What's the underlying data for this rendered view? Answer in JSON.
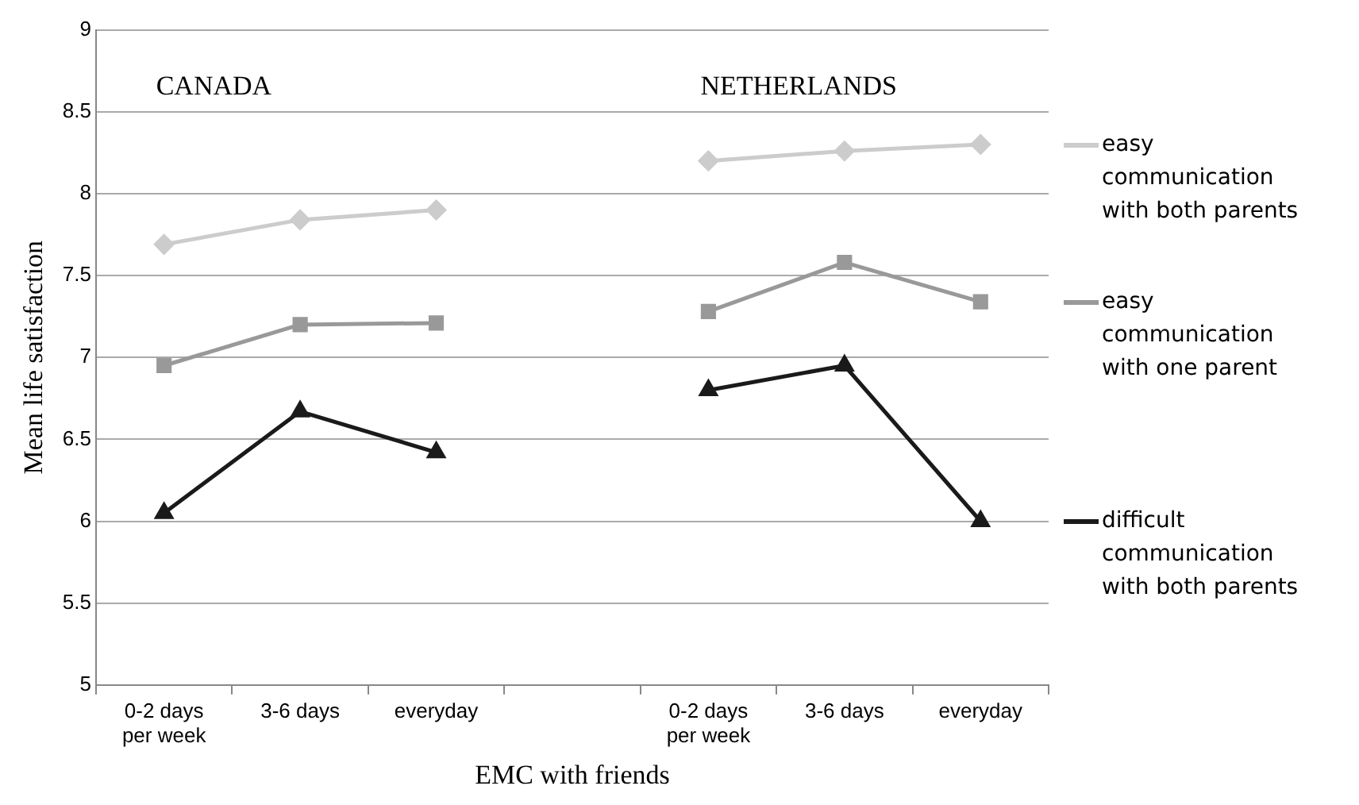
{
  "chart_data": {
    "type": "line",
    "xlabel": "EMC with friends",
    "ylabel": "Mean life satisfaction",
    "categories": [
      "0-2 days per week",
      "3-6 days",
      "everyday",
      null,
      "0-2 days per week",
      "3-6 days",
      "everyday"
    ],
    "series": [
      {
        "name": "easy communication with both parents",
        "color": "#cccccc",
        "marker": "diamond",
        "values": [
          7.69,
          7.84,
          7.9,
          null,
          8.2,
          8.26,
          8.3
        ]
      },
      {
        "name": "easy communication with one parent",
        "color": "#999999",
        "marker": "square",
        "values": [
          6.95,
          7.2,
          7.21,
          null,
          7.28,
          7.58,
          7.34
        ]
      },
      {
        "name": "difficult communication with both parents",
        "color": "#1a1a1a",
        "marker": "triangle",
        "values": [
          6.05,
          6.67,
          6.42,
          null,
          6.8,
          6.95,
          6.0
        ]
      }
    ],
    "annotations": [
      "CANADA",
      "NETHERLANDS"
    ],
    "ylim": [
      5,
      9
    ],
    "yticks": [
      5,
      5.5,
      6,
      6.5,
      7,
      7.5,
      8,
      8.5,
      9
    ],
    "grid": "y",
    "legend": "right"
  }
}
